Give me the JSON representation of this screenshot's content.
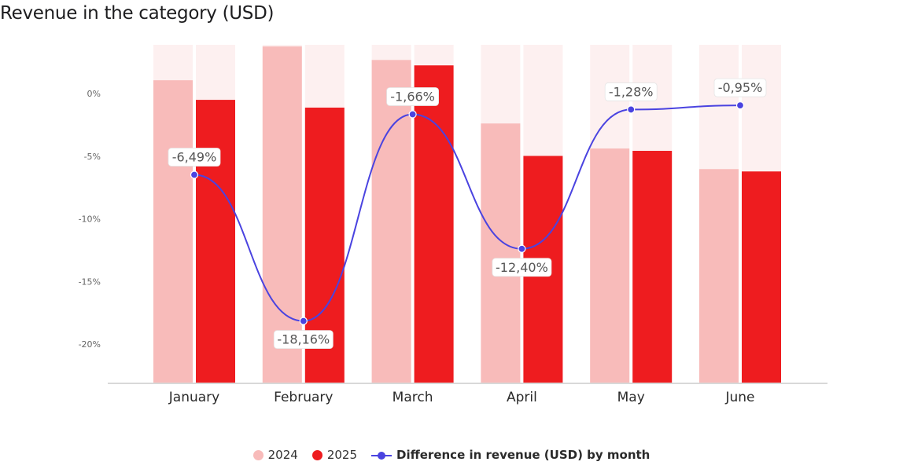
{
  "title": "Revenue in the category (USD)",
  "colors": {
    "series_2024": "#f8bbba",
    "series_2025": "#ee1c1f",
    "difference_line": "#4a43e0",
    "bar_background": "#fdf0f0",
    "axis": "#cccccc",
    "tick_text": "#666666"
  },
  "legend": {
    "items": [
      {
        "label": "2024",
        "marker": "circle"
      },
      {
        "label": "2025",
        "marker": "circle"
      },
      {
        "label": "Difference in revenue (USD) by month",
        "marker": "line"
      }
    ]
  },
  "chart_data": {
    "type": "bar",
    "categories": [
      "January",
      "February",
      "March",
      "April",
      "May",
      "June"
    ],
    "series": [
      {
        "name": "2024",
        "kind": "bar",
        "relative_height": [
          0.895,
          0.995,
          0.955,
          0.767,
          0.693,
          0.632
        ]
      },
      {
        "name": "2025",
        "kind": "bar",
        "relative_height": [
          0.837,
          0.814,
          0.939,
          0.671,
          0.686,
          0.625
        ]
      },
      {
        "name": "Difference in revenue (USD) by month",
        "kind": "line",
        "values": [
          -6.49,
          -18.16,
          -1.66,
          -12.4,
          -1.28,
          -0.95
        ],
        "data_labels": [
          "-6,49%",
          "-18,16%",
          "-1,66%",
          "-12,40%",
          "-1,28%",
          "-0,95%"
        ]
      }
    ],
    "y_axis": {
      "ticks": [
        0,
        -5,
        -10,
        -15,
        -20
      ],
      "tick_labels": [
        "0%",
        "-5%",
        "-10%",
        "-15%",
        "-20%"
      ],
      "range": [
        -23,
        4
      ]
    },
    "grid": false,
    "legend_position": "bottom"
  }
}
